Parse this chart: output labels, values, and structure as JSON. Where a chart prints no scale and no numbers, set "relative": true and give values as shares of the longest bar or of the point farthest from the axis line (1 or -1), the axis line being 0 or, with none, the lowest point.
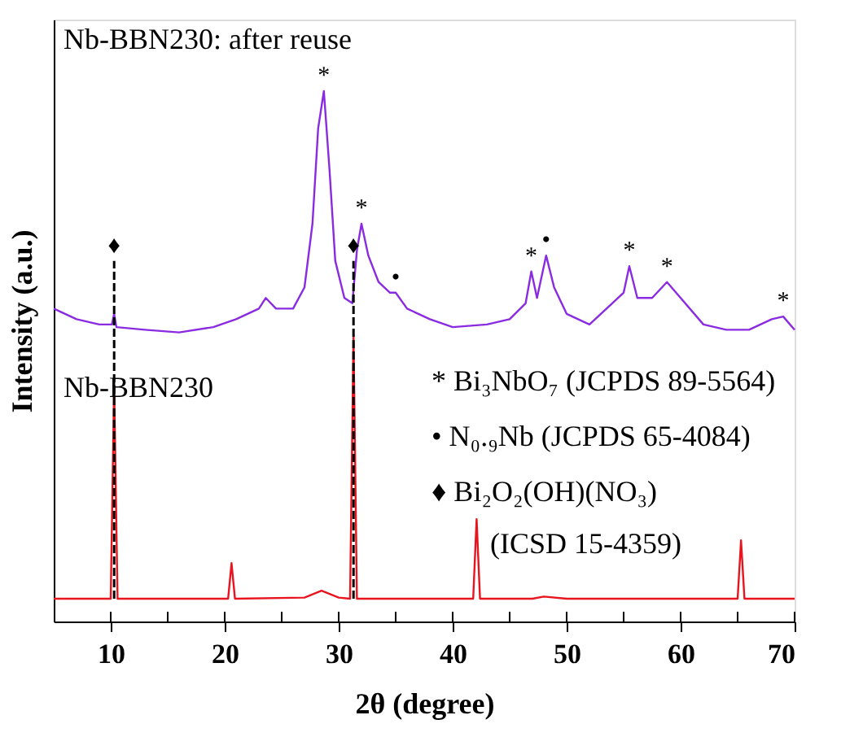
{
  "chart_data": {
    "type": "line",
    "relative": true,
    "xlabel": "2θ (degree)",
    "ylabel": "Intensity (a.u.)",
    "tick_labels": "x",
    "xlim": [
      5,
      70
    ],
    "xticks": [
      10,
      {
        "value": 15,
        "label": null
      },
      20,
      {
        "value": 25,
        "label": null
      },
      30,
      {
        "value": 35,
        "label": null
      },
      40,
      {
        "value": 45,
        "label": null
      },
      50,
      {
        "value": 55,
        "label": null
      },
      60,
      {
        "value": 65,
        "label": null
      },
      70
    ],
    "series": [
      {
        "name": "Nb-BBN230: after reuse",
        "color": "#8a2be2",
        "x": [
          5,
          7,
          9,
          10.1,
          10.3,
          10.5,
          13,
          16,
          19,
          21,
          23,
          23.6,
          24.5,
          26,
          27,
          27.7,
          28.2,
          28.7,
          29.2,
          29.7,
          30.5,
          31.2,
          31.6,
          32.0,
          32.6,
          33.5,
          34.5,
          35,
          36,
          38,
          40,
          43,
          45,
          46.4,
          46.9,
          47.4,
          48.2,
          48.9,
          50,
          52,
          54,
          55,
          55.5,
          56.2,
          57.5,
          58.8,
          60,
          62,
          64,
          66,
          68,
          69,
          70
        ],
        "values": [
          0.59,
          0.57,
          0.56,
          0.56,
          0.58,
          0.555,
          0.55,
          0.545,
          0.555,
          0.57,
          0.59,
          0.61,
          0.59,
          0.59,
          0.63,
          0.75,
          0.93,
          1.0,
          0.85,
          0.68,
          0.61,
          0.6,
          0.7,
          0.75,
          0.69,
          0.64,
          0.62,
          0.62,
          0.59,
          0.57,
          0.555,
          0.56,
          0.57,
          0.6,
          0.66,
          0.61,
          0.69,
          0.63,
          0.58,
          0.56,
          0.6,
          0.62,
          0.67,
          0.61,
          0.61,
          0.64,
          0.61,
          0.56,
          0.55,
          0.55,
          0.57,
          0.575,
          0.55
        ]
      },
      {
        "name": "Nb-BBN230",
        "color": "#e8141e",
        "x": [
          5,
          10.0,
          10.3,
          10.6,
          20.3,
          20.6,
          20.9,
          27,
          28.5,
          30,
          31.0,
          31.3,
          31.6,
          41.8,
          42.1,
          42.4,
          47,
          48,
          50,
          65.0,
          65.3,
          65.6,
          70
        ],
        "values": [
          0.043,
          0.043,
          0.445,
          0.043,
          0.043,
          0.11,
          0.043,
          0.045,
          0.058,
          0.045,
          0.043,
          0.54,
          0.043,
          0.043,
          0.193,
          0.043,
          0.043,
          0.047,
          0.043,
          0.043,
          0.153,
          0.043,
          0.043
        ]
      },
      {
        "color": "#000000",
        "line_style": "dashed",
        "x": [
          10.3,
          10.3
        ],
        "values": [
          0.043,
          0.68
        ]
      },
      {
        "color": "#000000",
        "line_style": "dashed",
        "x": [
          31.3,
          31.3
        ],
        "values": [
          0.043,
          0.68
        ]
      }
    ],
    "annotations": [
      {
        "text": "*",
        "x": 28.7,
        "y": 1.0
      },
      {
        "text": "*",
        "x": 32.0,
        "y": 0.75
      },
      {
        "text": "•",
        "x": 35,
        "y": 0.62
      },
      {
        "text": "*",
        "x": 46.9,
        "y": 0.66
      },
      {
        "text": "•",
        "x": 48.2,
        "y": 0.69
      },
      {
        "text": "*",
        "x": 55.5,
        "y": 0.67
      },
      {
        "text": "*",
        "x": 58.8,
        "y": 0.64
      },
      {
        "text": "*",
        "x": 69,
        "y": 0.575
      },
      {
        "text": "♦",
        "x": 10.3,
        "y": 0.68
      },
      {
        "text": "♦",
        "x": 31.3,
        "y": 0.68
      },
      "* Bi₃NbO₇ (JCPDS 89-5564)",
      "• N₀.₉Nb (JCPDS 65-4084)",
      "♦ Bi₂O₂(OH)(NO₃)",
      "(ICSD 15-4359)"
    ]
  }
}
